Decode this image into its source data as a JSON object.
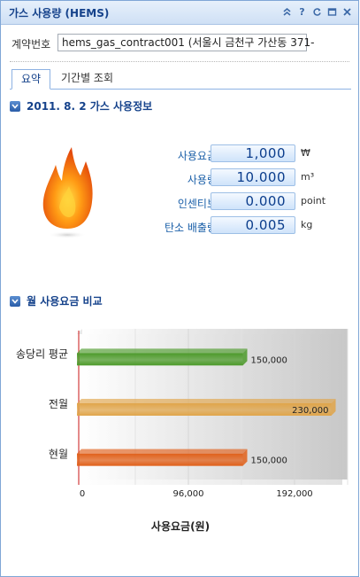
{
  "window": {
    "title": "가스 사용량 (HEMS)",
    "tools": [
      "pin-icon",
      "help-icon",
      "refresh-icon",
      "maximize-icon",
      "close-icon"
    ]
  },
  "contract": {
    "label": "계약번호",
    "value": "hems_gas_contract001 (서울시 금천구 가산동 371-"
  },
  "tabs": [
    {
      "label": "요약",
      "active": true
    },
    {
      "label": "기간별 조회",
      "active": false
    }
  ],
  "summary": {
    "heading": "2011. 8. 2 가스 사용정보",
    "rows": [
      {
        "label": "사용요금",
        "value": "1,000",
        "unit": "₩"
      },
      {
        "label": "사용량",
        "value": "10.000",
        "unit": "m³"
      },
      {
        "label": "인센티브",
        "value": "0.000",
        "unit": "point"
      },
      {
        "label": "탄소 배출량",
        "value": "0.005",
        "unit": "kg"
      }
    ]
  },
  "compare": {
    "heading": "월 사용요금 비교"
  },
  "chart_data": {
    "type": "bar",
    "orientation": "horizontal",
    "categories": [
      "송당리 평균",
      "전월",
      "현월"
    ],
    "values": [
      150000,
      230000,
      150000
    ],
    "value_labels": [
      "150,000",
      "230,000",
      "150,000"
    ],
    "colors": [
      "#4c9a2a",
      "#e0a54a",
      "#e0601a"
    ],
    "xlabel": "사용요금(원)",
    "xlim": [
      0,
      240000
    ],
    "xticks": [
      0,
      96000,
      192000
    ],
    "xtick_labels": [
      "0",
      "96,000",
      "192,000"
    ],
    "grid": true
  }
}
